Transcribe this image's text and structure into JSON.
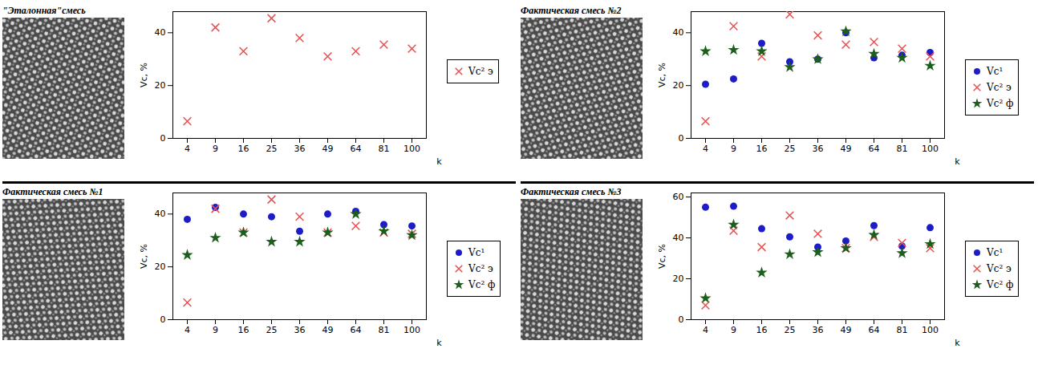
{
  "chart_data": [
    {
      "type": "scatter",
      "title": "\"Эталонная\"смесь",
      "xlabel": "k",
      "ylabel": "Vc, %",
      "x": [
        4,
        9,
        16,
        25,
        36,
        49,
        64,
        81,
        100
      ],
      "ylim": [
        0,
        48
      ],
      "yticks": [
        0,
        20,
        40
      ],
      "legend": "right",
      "series": [
        {
          "name": "Vc² э",
          "color": "#e8504f",
          "marker": "times",
          "values": [
            6.5,
            42,
            33,
            45.5,
            38,
            31,
            33,
            35.5,
            34
          ]
        }
      ]
    },
    {
      "type": "scatter",
      "title": "Фактическая смесь №2",
      "xlabel": "k",
      "ylabel": "Vc, %",
      "x": [
        4,
        9,
        16,
        25,
        36,
        49,
        64,
        81,
        100
      ],
      "ylim": [
        0,
        48
      ],
      "yticks": [
        0,
        20,
        40
      ],
      "legend": "right",
      "series": [
        {
          "name": "Vc¹",
          "color": "#1c1cc8",
          "marker": "circle",
          "values": [
            20.5,
            22.5,
            36,
            29,
            30,
            40,
            30.5,
            31.5,
            32.5
          ]
        },
        {
          "name": "Vc² э",
          "color": "#e8504f",
          "marker": "times",
          "values": [
            6.5,
            42.5,
            31,
            47,
            39,
            35.5,
            36.5,
            34,
            31
          ]
        },
        {
          "name": "Vc² ф",
          "color": "#1d5e1d",
          "marker": "star",
          "values": [
            33,
            33.5,
            33,
            27,
            30,
            40.5,
            32,
            30.5,
            27.5
          ]
        }
      ]
    },
    {
      "type": "scatter",
      "title": "Фактическая смесь №1",
      "xlabel": "k",
      "ylabel": "Vc, %",
      "x": [
        4,
        9,
        16,
        25,
        36,
        49,
        64,
        81,
        100
      ],
      "ylim": [
        0,
        48
      ],
      "yticks": [
        0,
        20,
        40
      ],
      "legend": "right",
      "series": [
        {
          "name": "Vc¹",
          "color": "#1c1cc8",
          "marker": "circle",
          "values": [
            38,
            42.5,
            40,
            39,
            33.5,
            40,
            41,
            36,
            35.5
          ]
        },
        {
          "name": "Vc² э",
          "color": "#e8504f",
          "marker": "times",
          "values": [
            6.5,
            42,
            33,
            45.5,
            39,
            33,
            35.5,
            33,
            32.5
          ]
        },
        {
          "name": "Vc² ф",
          "color": "#1d5e1d",
          "marker": "star",
          "values": [
            24.5,
            31,
            33,
            29.5,
            29.5,
            33,
            40,
            33.5,
            32
          ]
        }
      ]
    },
    {
      "type": "scatter",
      "title": "Фактическая смесь №3",
      "xlabel": "k",
      "ylabel": "Vc, %",
      "x": [
        4,
        9,
        16,
        25,
        36,
        49,
        64,
        81,
        100
      ],
      "ylim": [
        0,
        62
      ],
      "yticks": [
        0,
        20,
        40,
        60
      ],
      "legend": "right",
      "series": [
        {
          "name": "Vc¹",
          "color": "#1c1cc8",
          "marker": "circle",
          "values": [
            55,
            55.5,
            44.5,
            40.5,
            35.5,
            38.5,
            46,
            36,
            45
          ]
        },
        {
          "name": "Vc² э",
          "color": "#e8504f",
          "marker": "times",
          "values": [
            7,
            43.5,
            35.5,
            51,
            42,
            35,
            40.5,
            37.5,
            35
          ]
        },
        {
          "name": "Vc² ф",
          "color": "#1d5e1d",
          "marker": "star",
          "values": [
            10.5,
            46.5,
            23,
            32,
            33,
            35,
            41.5,
            32.5,
            37
          ]
        }
      ]
    }
  ]
}
